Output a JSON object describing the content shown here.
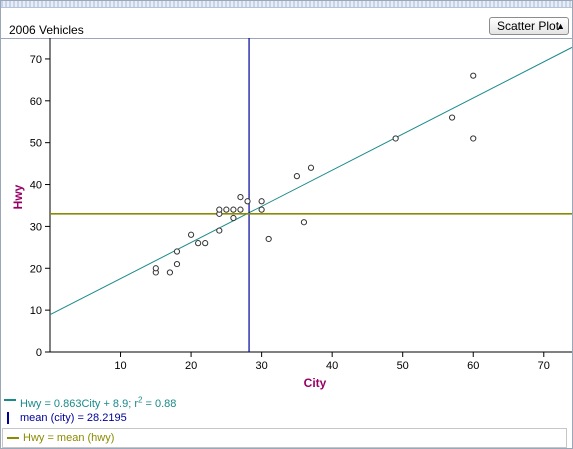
{
  "window": {
    "title": "2006 Vehicles",
    "plot_type": "Scatter Plot"
  },
  "colors": {
    "regression": "#1a8a8a",
    "mean_city": "#000099",
    "mean_hwy": "#8b8b00",
    "axis_label": "#990066",
    "points": "#333333"
  },
  "chart_data": {
    "type": "scatter",
    "title": "",
    "xlabel": "City",
    "ylabel": "Hwy",
    "xlim": [
      0,
      74
    ],
    "ylim": [
      0,
      75
    ],
    "x_ticks": [
      10,
      20,
      30,
      40,
      50,
      60,
      70
    ],
    "y_ticks": [
      0,
      10,
      20,
      30,
      40,
      50,
      60,
      70
    ],
    "points": [
      {
        "x": 15,
        "y": 19
      },
      {
        "x": 15,
        "y": 20
      },
      {
        "x": 17,
        "y": 19
      },
      {
        "x": 18,
        "y": 21
      },
      {
        "x": 18,
        "y": 24
      },
      {
        "x": 20,
        "y": 28
      },
      {
        "x": 21,
        "y": 26
      },
      {
        "x": 22,
        "y": 26
      },
      {
        "x": 24,
        "y": 29
      },
      {
        "x": 24,
        "y": 33
      },
      {
        "x": 24,
        "y": 34
      },
      {
        "x": 25,
        "y": 34
      },
      {
        "x": 26,
        "y": 32
      },
      {
        "x": 26,
        "y": 34
      },
      {
        "x": 27,
        "y": 34
      },
      {
        "x": 27,
        "y": 37
      },
      {
        "x": 28,
        "y": 36
      },
      {
        "x": 30,
        "y": 34
      },
      {
        "x": 30,
        "y": 36
      },
      {
        "x": 31,
        "y": 27
      },
      {
        "x": 35,
        "y": 42
      },
      {
        "x": 36,
        "y": 31
      },
      {
        "x": 37,
        "y": 44
      },
      {
        "x": 49,
        "y": 51
      },
      {
        "x": 57,
        "y": 56
      },
      {
        "x": 60,
        "y": 51
      },
      {
        "x": 60,
        "y": 66
      }
    ],
    "regression": {
      "slope": 0.863,
      "intercept": 8.9
    },
    "mean_city": 28.2195,
    "mean_hwy": 33
  },
  "legend": {
    "regression_label": "Hwy = 0.863City + 8.9; r",
    "regression_r2_sup": "2",
    "regression_r2_value": " = 0.88",
    "mean_city_label": "mean (city) = 28.2195",
    "mean_hwy_label": "Hwy = mean (hwy)"
  }
}
